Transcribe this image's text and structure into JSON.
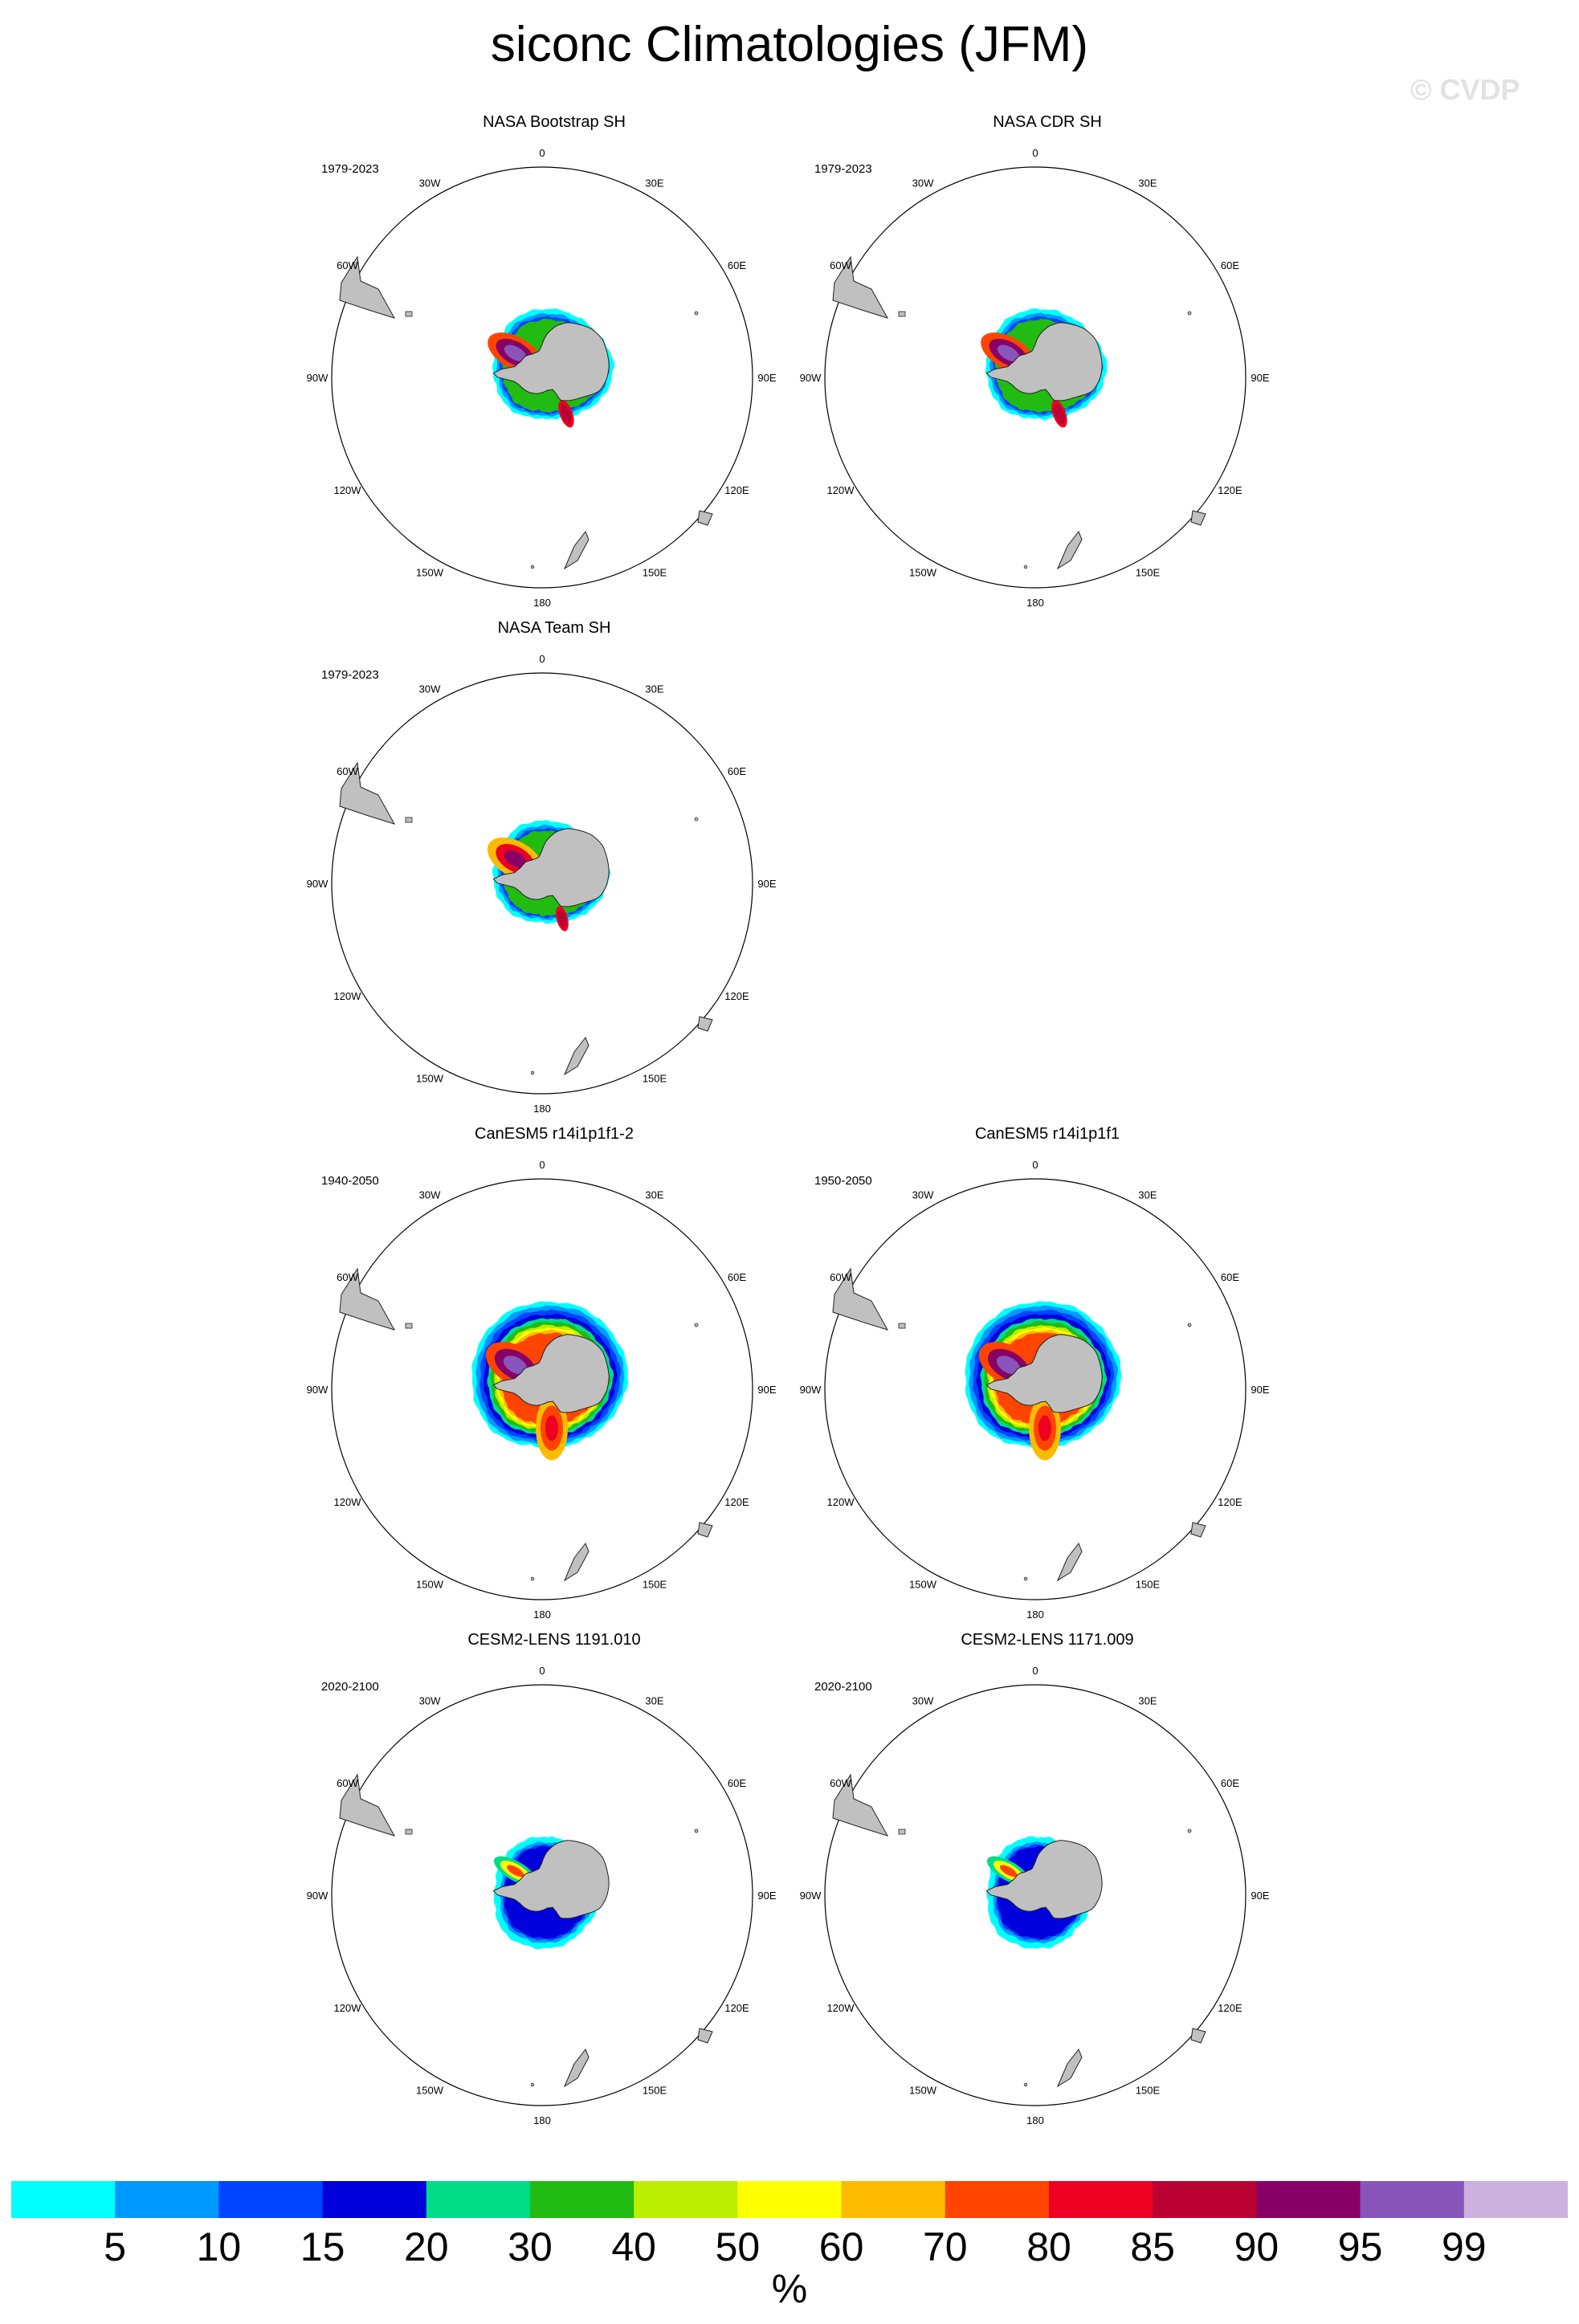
{
  "title": "siconc Climatologies (JFM)",
  "watermark": "© CVDP",
  "chart_data": {
    "type": "heatmap",
    "projection": "south-polar-stereographic",
    "variable": "siconc",
    "season": "JFM",
    "panels": [
      {
        "title": "NASA Bootstrap SH",
        "years": "1979-2023",
        "row": 0,
        "col": 0,
        "pattern": "obs_boot"
      },
      {
        "title": "NASA CDR SH",
        "years": "1979-2023",
        "row": 0,
        "col": 1,
        "pattern": "obs_boot"
      },
      {
        "title": "NASA Team SH",
        "years": "1979-2023",
        "row": 1,
        "col": 0,
        "pattern": "obs_team"
      },
      {
        "title": "CanESM5 r14i1p1f1-2",
        "years": "1940-2050",
        "row": 2,
        "col": 0,
        "pattern": "canesm"
      },
      {
        "title": "CanESM5 r14i1p1f1",
        "years": "1950-2050",
        "row": 2,
        "col": 1,
        "pattern": "canesm"
      },
      {
        "title": "CESM2-LENS 1191.010",
        "years": "2020-2100",
        "row": 3,
        "col": 0,
        "pattern": "cesm"
      },
      {
        "title": "CESM2-LENS 1171.009",
        "years": "2020-2100",
        "row": 3,
        "col": 1,
        "pattern": "cesm"
      }
    ],
    "longitude_labels": [
      {
        "text": "0",
        "lon": 0
      },
      {
        "text": "30E",
        "lon": 30
      },
      {
        "text": "60E",
        "lon": 60
      },
      {
        "text": "90E",
        "lon": 90
      },
      {
        "text": "120E",
        "lon": 120
      },
      {
        "text": "150E",
        "lon": 150
      },
      {
        "text": "180",
        "lon": 180
      },
      {
        "text": "150W",
        "lon": -150
      },
      {
        "text": "120W",
        "lon": -120
      },
      {
        "text": "90W",
        "lon": -90
      },
      {
        "text": "60W",
        "lon": -60
      },
      {
        "text": "30W",
        "lon": -30
      }
    ],
    "colorbar": {
      "levels": [
        "5",
        "10",
        "15",
        "20",
        "30",
        "40",
        "50",
        "60",
        "70",
        "80",
        "85",
        "90",
        "95",
        "99"
      ],
      "colors": [
        "#00ffff",
        "#0099ff",
        "#0044ff",
        "#0000dd",
        "#00dd88",
        "#22bb11",
        "#bbee00",
        "#ffff00",
        "#ffbb00",
        "#ff4400",
        "#ee0022",
        "#bb0033",
        "#880066",
        "#8855bb",
        "#ccb0dd"
      ],
      "units": "%"
    },
    "land_color": "#c0c0c0"
  }
}
